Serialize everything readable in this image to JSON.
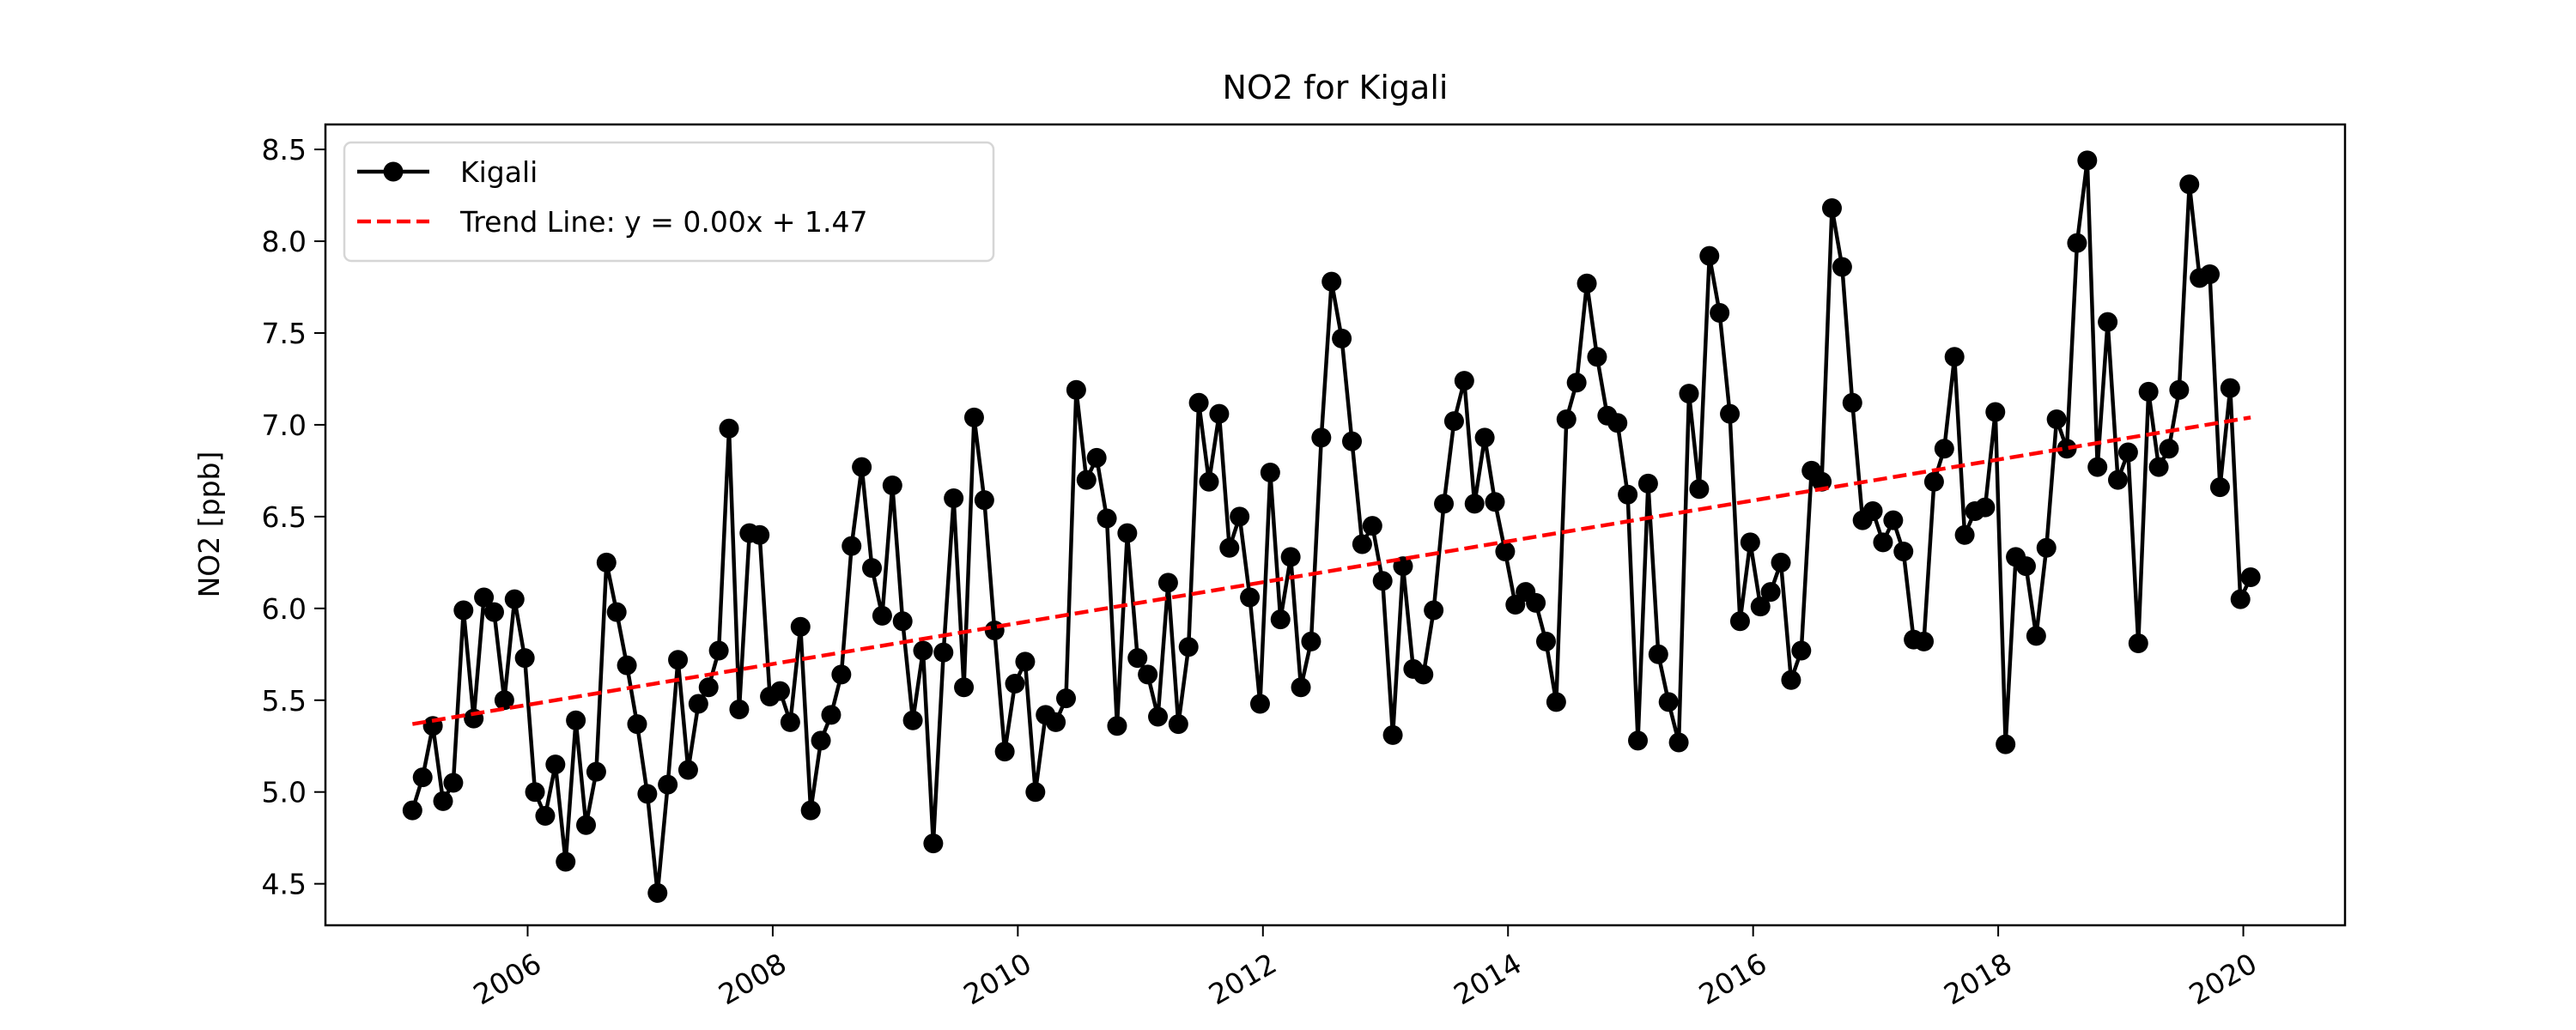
{
  "chart_data": {
    "type": "line",
    "title": "NO2 for Kigali",
    "xlabel": "",
    "ylabel": "NO2 [ppb]",
    "xlim": [
      2004.35,
      2020.83
    ],
    "ylim": [
      4.274,
      8.636
    ],
    "x_ticks": [
      "2006",
      "2008",
      "2010",
      "2012",
      "2014",
      "2016",
      "2018",
      "2020"
    ],
    "y_ticks": [
      "4.5",
      "5.0",
      "5.5",
      "6.0",
      "6.5",
      "7.0",
      "7.5",
      "8.0",
      "8.5"
    ],
    "grid": false,
    "legend_position": "top-left",
    "legend": [
      "Kigali",
      "Trend Line: y = 0.00x + 1.47"
    ],
    "start": "2005-01",
    "frequency": "monthly",
    "series": [
      {
        "name": "Kigali",
        "color": "#000000",
        "values": [
          4.9,
          5.08,
          5.36,
          4.95,
          5.05,
          5.99,
          5.4,
          6.06,
          5.98,
          5.5,
          6.05,
          5.73,
          5.0,
          4.87,
          5.15,
          4.62,
          5.39,
          4.82,
          5.11,
          6.25,
          5.98,
          5.69,
          5.37,
          4.99,
          4.45,
          5.04,
          5.72,
          5.12,
          5.48,
          5.57,
          5.77,
          6.98,
          5.45,
          6.41,
          6.4,
          5.52,
          5.55,
          5.38,
          5.9,
          4.9,
          5.28,
          5.42,
          5.64,
          6.34,
          6.77,
          6.22,
          5.96,
          6.67,
          5.93,
          5.39,
          5.77,
          4.72,
          5.76,
          6.6,
          5.57,
          7.04,
          6.59,
          5.88,
          5.22,
          5.59,
          5.71,
          5.0,
          5.42,
          5.38,
          5.51,
          7.19,
          6.7,
          6.82,
          6.49,
          5.36,
          6.41,
          5.73,
          5.64,
          5.41,
          6.14,
          5.37,
          5.79,
          7.12,
          6.69,
          7.06,
          6.33,
          6.5,
          6.06,
          5.48,
          6.74,
          5.94,
          6.28,
          5.57,
          5.82,
          6.93,
          7.78,
          7.47,
          6.91,
          6.35,
          6.45,
          6.15,
          5.31,
          6.23,
          5.67,
          5.64,
          5.99,
          6.57,
          7.02,
          7.24,
          6.57,
          6.93,
          6.58,
          6.31,
          6.02,
          6.09,
          6.03,
          5.82,
          5.49,
          7.03,
          7.23,
          7.77,
          7.37,
          7.05,
          7.01,
          6.62,
          5.28,
          6.68,
          5.75,
          5.49,
          5.27,
          7.17,
          6.65,
          7.92,
          7.61,
          7.06,
          5.93,
          6.36,
          6.01,
          6.09,
          6.25,
          5.61,
          5.77,
          6.75,
          6.69,
          8.18,
          7.86,
          7.12,
          6.48,
          6.53,
          6.36,
          6.48,
          6.31,
          5.83,
          5.82,
          6.69,
          6.87,
          7.37,
          6.4,
          6.53,
          6.55,
          7.07,
          5.26,
          6.28,
          6.23,
          5.85,
          6.33,
          7.03,
          6.87,
          7.99,
          8.44,
          6.77,
          7.56,
          6.7,
          6.85,
          5.81,
          7.18,
          6.77,
          6.87,
          7.19,
          8.31,
          7.8,
          7.82,
          6.66,
          7.2,
          6.05,
          6.17
        ]
      },
      {
        "name": "Trend Line: y = 0.00x + 1.47",
        "color": "#ff0000",
        "style": "dashed",
        "x": [
          2005.06,
          2020.06
        ],
        "values": [
          5.37,
          7.04
        ]
      }
    ]
  }
}
